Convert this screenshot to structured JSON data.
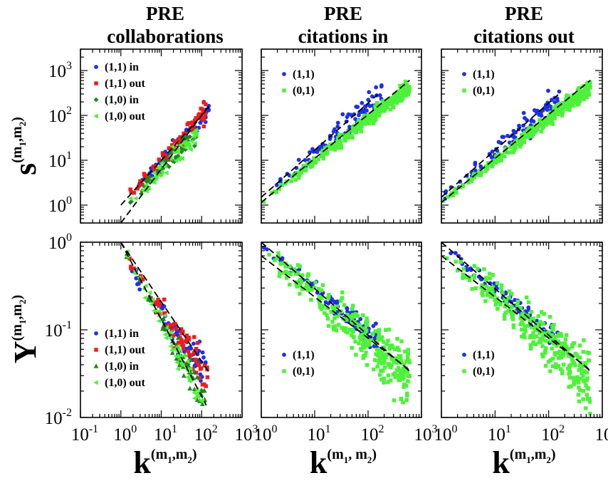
{
  "colors": {
    "blue": "#1f2fe6",
    "red": "#ee1c1c",
    "darkgreen": "#1a8a1a",
    "lightgreen": "#4ef13a"
  },
  "chart_data": [
    {
      "type": "scatter",
      "id": "p11",
      "title_line1": "PRE",
      "title_line2": "collaborations",
      "log_x": true,
      "log_y": true,
      "xlim": [
        0.1,
        1000
      ],
      "ylim": [
        0.4,
        3000
      ],
      "ylabel": "s",
      "ylabel_sup": "(m",
      "ylabel_sub1": "1",
      "ylabel_mid": ",m",
      "ylabel_sub2": "2",
      "ylabel_close": ")",
      "series": [
        {
          "name": "(1,1) in",
          "color": "#1f2fe6",
          "marker": "circle",
          "a": 0.95,
          "b": 1.0,
          "kmax": 150,
          "n": 70,
          "spread": 0.09
        },
        {
          "name": "(1,1) out",
          "color": "#ee1c1c",
          "marker": "square",
          "a": 1.0,
          "b": 1.0,
          "kmax": 140,
          "n": 70,
          "spread": 0.1
        },
        {
          "name": "(1,0) in",
          "color": "#1a8a1a",
          "marker": "diamond",
          "a": 0.75,
          "b": 0.93,
          "kmax": 80,
          "n": 60,
          "spread": 0.09
        },
        {
          "name": "(1,0) out",
          "color": "#4ef13a",
          "marker": "triangle-left",
          "a": 0.7,
          "b": 0.93,
          "kmax": 75,
          "n": 60,
          "spread": 0.09
        }
      ],
      "fit_lines": [
        {
          "a": 1.0,
          "b": 1.0,
          "x0": 1,
          "x1": 150
        },
        {
          "a": 0.4,
          "b": 1.2,
          "x0": 1,
          "x1": 150
        }
      ]
    },
    {
      "type": "scatter",
      "id": "p12",
      "title_line1": "PRE",
      "title_line2": "citations in",
      "log_x": true,
      "log_y": true,
      "xlim": [
        1,
        1000
      ],
      "ylim": [
        0.4,
        3000
      ],
      "series": [
        {
          "name": "(1,1)",
          "color": "#1f2fe6",
          "marker": "circle",
          "a": 1.5,
          "b": 1.0,
          "kmax": 180,
          "n": 90,
          "spread": 0.12
        },
        {
          "name": "(0,1)",
          "color": "#4ef13a",
          "marker": "square",
          "a": 1.15,
          "b": 0.93,
          "kmax": 600,
          "n": 300,
          "spread": 0.07
        }
      ],
      "fit_lines": [
        {
          "a": 1.5,
          "b": 1.05,
          "x0": 1,
          "x1": 150
        },
        {
          "a": 1.15,
          "b": 0.98,
          "x0": 1,
          "x1": 600
        }
      ]
    },
    {
      "type": "scatter",
      "id": "p13",
      "title_line1": "PRE",
      "title_line2": "citations out",
      "log_x": true,
      "log_y": true,
      "xlim": [
        1,
        1000
      ],
      "ylim": [
        0.4,
        3000
      ],
      "series": [
        {
          "name": "(1,1)",
          "color": "#1f2fe6",
          "marker": "circle",
          "a": 1.5,
          "b": 1.0,
          "kmax": 180,
          "n": 90,
          "spread": 0.12
        },
        {
          "name": "(0,1)",
          "color": "#4ef13a",
          "marker": "square",
          "a": 1.15,
          "b": 0.93,
          "kmax": 600,
          "n": 300,
          "spread": 0.07
        }
      ],
      "fit_lines": [
        {
          "a": 1.5,
          "b": 1.05,
          "x0": 1,
          "x1": 150
        },
        {
          "a": 1.15,
          "b": 0.98,
          "x0": 1,
          "x1": 600
        }
      ]
    },
    {
      "type": "scatter",
      "id": "p21",
      "log_x": true,
      "log_y": true,
      "xlim": [
        0.1,
        1000
      ],
      "ylim": [
        0.01,
        1
      ],
      "xlabel": "k",
      "xlabel_sup": "(m",
      "xlabel_sub1": "1",
      "xlabel_mid": ",m",
      "xlabel_sub2": "2",
      "xlabel_close": ")",
      "ylabel": "Y",
      "ylabel_sup": "(m",
      "ylabel_sub1": "1",
      "ylabel_mid": ",m",
      "ylabel_sub2": "2",
      "ylabel_close": ")",
      "series": [
        {
          "name": "(1,1) in",
          "color": "#1f2fe6",
          "marker": "circle",
          "a": 0.7,
          "b": -0.65,
          "kmax": 130,
          "n": 70,
          "spread": 0.08
        },
        {
          "name": "(1,1) out",
          "color": "#ee1c1c",
          "marker": "square",
          "a": 0.75,
          "b": -0.66,
          "kmax": 140,
          "n": 70,
          "spread": 0.09
        },
        {
          "name": "(1,0) in",
          "color": "#1a8a1a",
          "marker": "triangle-up",
          "a": 1.0,
          "b": -0.88,
          "kmax": 120,
          "n": 60,
          "spread": 0.07
        },
        {
          "name": "(1,0) out",
          "color": "#4ef13a",
          "marker": "triangle-left",
          "a": 1.0,
          "b": -0.9,
          "kmax": 115,
          "n": 60,
          "spread": 0.07
        }
      ],
      "fit_lines": [
        {
          "a": 1.0,
          "b": -0.68,
          "x0": 1,
          "x1": 150
        },
        {
          "a": 1.0,
          "b": -0.88,
          "x0": 1,
          "x1": 130
        }
      ]
    },
    {
      "type": "scatter",
      "id": "p22",
      "log_x": true,
      "log_y": true,
      "xlim": [
        1,
        1000
      ],
      "ylim": [
        0.01,
        1
      ],
      "xlabel": "k",
      "xlabel_sup": "(m",
      "xlabel_sub1": "1",
      "xlabel_mid": ", m",
      "xlabel_sub2": "2",
      "xlabel_close": ")",
      "series": [
        {
          "name": "(1,1)",
          "color": "#1f2fe6",
          "marker": "circle",
          "a": 0.95,
          "b": -0.5,
          "kmax": 150,
          "n": 90,
          "spread": 0.05
        },
        {
          "name": "(0,1)",
          "color": "#4ef13a",
          "marker": "square",
          "a": 0.85,
          "b": -0.53,
          "kmax": 600,
          "n": 300,
          "spread": 0.12
        }
      ],
      "fit_lines": [
        {
          "a": 1.0,
          "b": -0.53,
          "x0": 1,
          "x1": 600
        },
        {
          "a": 0.7,
          "b": -0.47,
          "x0": 1,
          "x1": 600
        }
      ]
    },
    {
      "type": "scatter",
      "id": "p23",
      "log_x": true,
      "log_y": true,
      "xlim": [
        1,
        1000
      ],
      "ylim": [
        0.01,
        1
      ],
      "xlabel": "k",
      "xlabel_sup": "(m",
      "xlabel_sub1": "1",
      "xlabel_mid": ",m",
      "xlabel_sub2": "2",
      "xlabel_close": ")",
      "series": [
        {
          "name": "(1,1)",
          "color": "#1f2fe6",
          "marker": "circle",
          "a": 0.95,
          "b": -0.5,
          "kmax": 150,
          "n": 90,
          "spread": 0.05
        },
        {
          "name": "(0,1)",
          "color": "#4ef13a",
          "marker": "square",
          "a": 0.85,
          "b": -0.53,
          "kmax": 600,
          "n": 300,
          "spread": 0.12
        }
      ],
      "fit_lines": [
        {
          "a": 1.0,
          "b": -0.53,
          "x0": 1,
          "x1": 600
        },
        {
          "a": 0.7,
          "b": -0.47,
          "x0": 1,
          "x1": 600
        }
      ]
    }
  ]
}
